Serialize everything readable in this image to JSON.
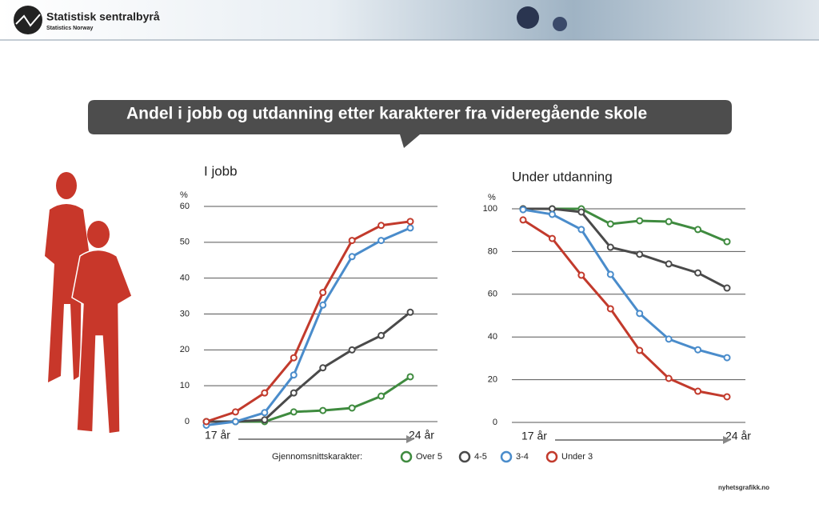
{
  "header": {
    "logo_title": "Statistisk sentralbyrå",
    "logo_subtitle": "Statistics Norway"
  },
  "title": "Andel i jobb og utdanning etter karakterer fra videregående skole",
  "legend_title": "Gjennomsnittskarakter:",
  "footer": "nyhetsgrafikk.no",
  "chart_data": [
    {
      "type": "line",
      "title": "I jobb",
      "y_label": "%",
      "categories": [
        "17 år",
        null,
        null,
        null,
        null,
        null,
        null,
        "24 år"
      ],
      "ylim": [
        0,
        60
      ],
      "yticks": [
        0,
        10,
        20,
        30,
        40,
        50,
        60
      ],
      "grid": true,
      "series": [
        {
          "name": "Over 5",
          "color": "#3f8b3f",
          "values": [
            0,
            0,
            0,
            2.7,
            3.1,
            3.8,
            7.1,
            12.5
          ]
        },
        {
          "name": "4-5",
          "color": "#4a4a4a",
          "values": [
            0,
            0,
            0.5,
            8,
            15,
            20,
            24,
            30.5
          ]
        },
        {
          "name": "3-4",
          "color": "#4a8ccb",
          "values": [
            -1,
            0,
            2.5,
            13,
            32.5,
            46,
            50.5,
            54
          ]
        },
        {
          "name": "Under 3",
          "color": "#c23a2c",
          "values": [
            0,
            2.7,
            8,
            17.8,
            36,
            50.5,
            54.7,
            55.8
          ]
        }
      ]
    },
    {
      "type": "line",
      "title": "Under utdanning",
      "y_label": "%",
      "categories": [
        "17 år",
        null,
        null,
        null,
        null,
        null,
        null,
        "24 år"
      ],
      "ylim": [
        0,
        100
      ],
      "yticks": [
        0,
        20,
        40,
        60,
        80,
        100
      ],
      "grid": true,
      "series": [
        {
          "color": "#3f8b3f",
          "values": [
            100,
            100,
            100,
            92.9,
            94.4,
            94,
            90.3,
            84.6
          ]
        },
        {
          "color": "#4a4a4a",
          "values": [
            100,
            100,
            98.5,
            82,
            78.7,
            74.2,
            70,
            62.9
          ]
        },
        {
          "color": "#4a8ccb",
          "values": [
            99.6,
            97.4,
            90.3,
            69.3,
            51,
            39,
            34,
            30.3
          ]
        },
        {
          "color": "#c23a2c",
          "values": [
            94.8,
            86.1,
            68.9,
            53.2,
            33.7,
            20.6,
            14.6,
            12
          ]
        }
      ]
    }
  ]
}
